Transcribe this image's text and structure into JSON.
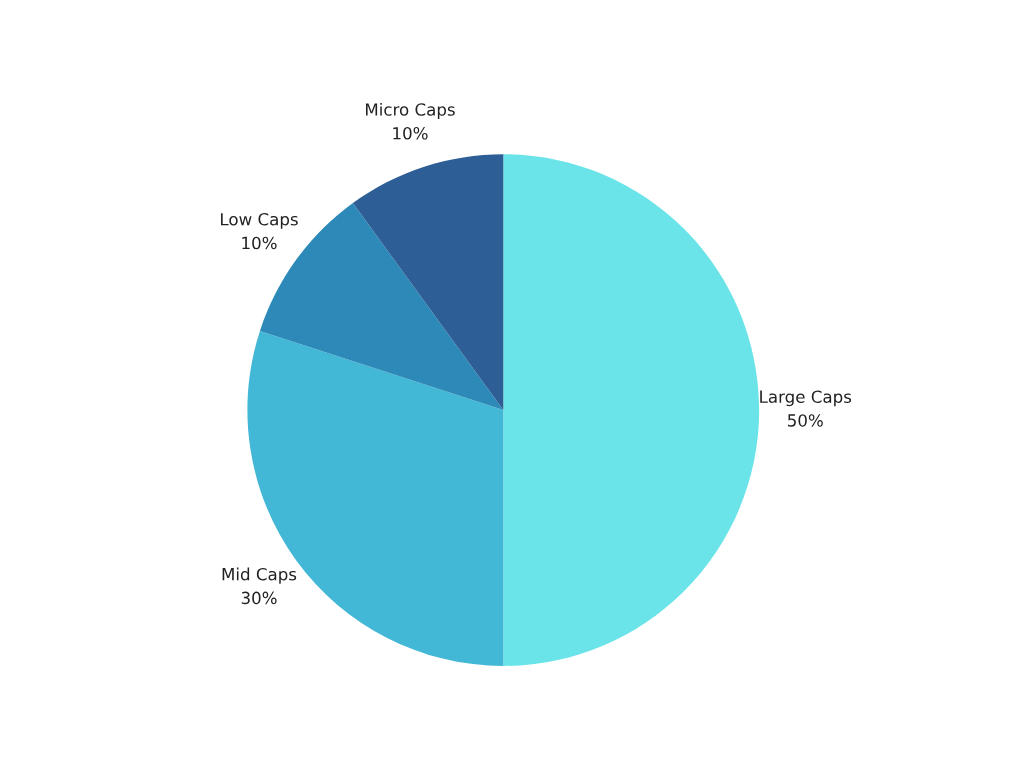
{
  "chart_data": {
    "type": "pie",
    "categories": [
      "Large Caps",
      "Mid Caps",
      "Low Caps",
      "Micro Caps"
    ],
    "values": [
      50,
      30,
      10,
      10
    ],
    "value_labels": [
      "50%",
      "30%",
      "10%",
      "10%"
    ],
    "colors": [
      "#6ae4e8",
      "#43b7d6",
      "#2d8ab8",
      "#2e5e96"
    ]
  }
}
